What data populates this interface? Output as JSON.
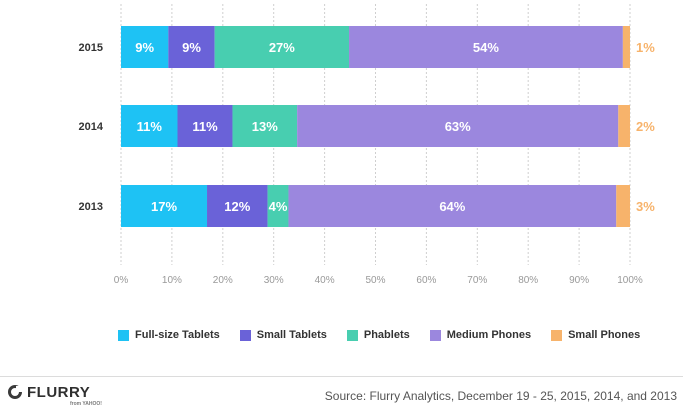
{
  "chart_data": {
    "type": "bar",
    "orientation": "horizontal",
    "stacked": true,
    "categories": [
      "2015",
      "2014",
      "2013"
    ],
    "series": [
      {
        "name": "Full-size Tablets",
        "color": "#1ec2f4",
        "values": [
          9,
          11,
          17
        ],
        "labels": [
          "9%",
          "11%",
          "17%"
        ],
        "drawn": [
          9.3,
          11.1,
          16.9
        ]
      },
      {
        "name": "Small Tablets",
        "color": "#6a62d8",
        "values": [
          9,
          11,
          12
        ],
        "labels": [
          "9%",
          "11%",
          "12%"
        ],
        "drawn": [
          9.1,
          10.8,
          11.9
        ]
      },
      {
        "name": "Phablets",
        "color": "#48ceb0",
        "values": [
          27,
          13,
          4
        ],
        "labels": [
          "27%",
          "13%",
          "4%"
        ],
        "drawn": [
          26.4,
          12.7,
          4.1
        ]
      },
      {
        "name": "Medium Phones",
        "color": "#9b87de",
        "values": [
          54,
          63,
          64
        ],
        "labels": [
          "54%",
          "63%",
          "64%"
        ],
        "drawn": [
          53.8,
          63.1,
          64.4
        ]
      },
      {
        "name": "Small Phones",
        "color": "#f7b36b",
        "values": [
          1,
          2,
          3
        ],
        "labels": [
          "1%",
          "2%",
          "3%"
        ],
        "drawn": [
          1.4,
          2.3,
          2.7
        ]
      }
    ],
    "xlim": [
      0,
      100
    ],
    "xticks": [
      "0%",
      "10%",
      "20%",
      "30%",
      "40%",
      "50%",
      "60%",
      "70%",
      "80%",
      "90%",
      "100%"
    ],
    "grid": "vertical dashed",
    "legend": "bottom"
  },
  "source": "Source: Flurry Analytics, December 19 - 25, 2015, 2014, and 2013",
  "logo": {
    "name": "FLURRY",
    "sub": "from YAHOO!"
  }
}
